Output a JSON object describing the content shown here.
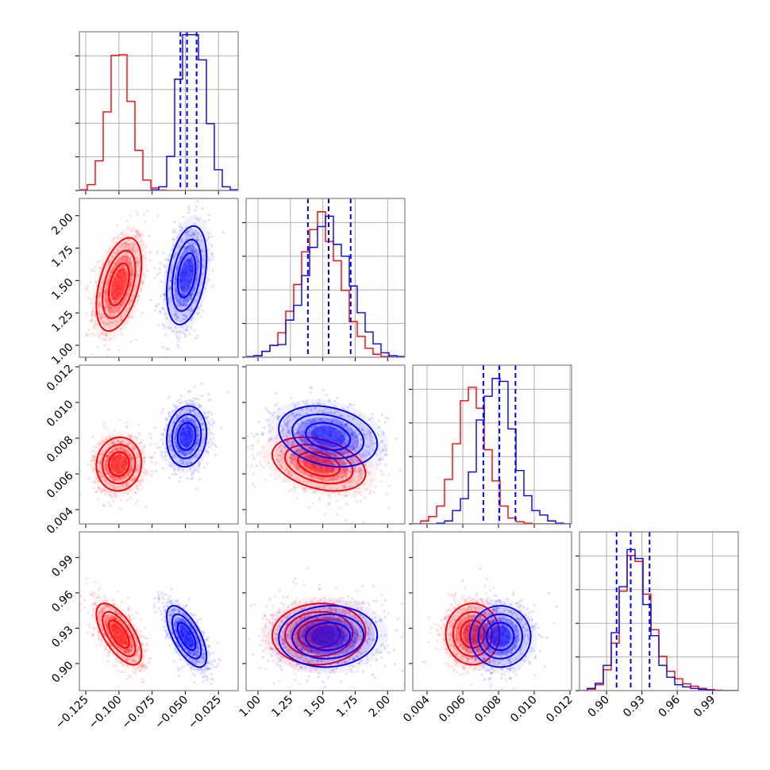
{
  "chart_data": {
    "type": "corner",
    "title": "",
    "parameters": [
      {
        "index": 0,
        "range": [
          -0.1298,
          -0.0102
        ],
        "ticks": [
          -0.125,
          -0.1,
          -0.075,
          -0.05,
          -0.025
        ],
        "tick_labels": [
          "−0.125",
          "−0.100",
          "−0.075",
          "−0.050",
          "−0.025"
        ]
      },
      {
        "index": 1,
        "range": [
          0.908,
          2.133
        ],
        "ticks": [
          1.0,
          1.25,
          1.5,
          1.75,
          2.0
        ],
        "tick_labels": [
          "1.00",
          "1.25",
          "1.50",
          "1.75",
          "2.00"
        ]
      },
      {
        "index": 2,
        "range": [
          0.0032,
          0.01209
        ],
        "ticks": [
          0.004,
          0.006,
          0.008,
          0.01,
          0.012
        ],
        "tick_labels": [
          "0.004",
          "0.006",
          "0.008",
          "0.010",
          "0.012"
        ]
      },
      {
        "index": 3,
        "range": [
          0.877,
          1.0118
        ],
        "ticks": [
          0.9,
          0.93,
          0.96,
          0.99
        ],
        "tick_labels": [
          "0.90",
          "0.93",
          "0.96",
          "0.99"
        ]
      }
    ],
    "series": [
      {
        "name": "red",
        "color": "#ff0000",
        "means": [
          -0.1,
          1.47,
          0.00655,
          0.925
        ],
        "stds": [
          0.0085,
          0.18,
          0.00075,
          0.013
        ],
        "correlations": {
          "0-1": 0.45,
          "0-2": 0.05,
          "0-3": -0.65,
          "1-2": -0.35,
          "1-3": 0.05,
          "2-3": 0.0
        },
        "histograms": [
          [
            0.005,
            0.04,
            0.2,
            0.53,
            0.91,
            0.915,
            0.6,
            0.27,
            0.07,
            0.017,
            0.003,
            0,
            0,
            0,
            0,
            0,
            0,
            0,
            0,
            0
          ],
          [
            0.005,
            0.01,
            0.04,
            0.08,
            0.165,
            0.31,
            0.49,
            0.71,
            0.86,
            0.98,
            0.78,
            0.65,
            0.45,
            0.24,
            0.14,
            0.06,
            0.02,
            0.005,
            0,
            0
          ],
          [
            0,
            0.02,
            0.05,
            0.12,
            0.3,
            0.54,
            0.83,
            0.92,
            0.78,
            0.5,
            0.29,
            0.12,
            0.04,
            0.015,
            0.005,
            0,
            0,
            0,
            0,
            0
          ],
          [
            0,
            0.01,
            0.04,
            0.14,
            0.32,
            0.67,
            0.91,
            0.87,
            0.65,
            0.41,
            0.23,
            0.13,
            0.08,
            0.045,
            0.03,
            0.015,
            0.007,
            0.003,
            0,
            0
          ]
        ]
      },
      {
        "name": "blue",
        "color": "#0000ff",
        "means": [
          -0.049,
          1.54,
          0.0081,
          0.923
        ],
        "stds": [
          0.0075,
          0.19,
          0.00085,
          0.013
        ],
        "correlations": {
          "0-1": 0.35,
          "0-2": 0.1,
          "0-3": -0.65,
          "1-2": -0.25,
          "1-3": 0.05,
          "2-3": 0.0
        },
        "histograms": [
          [
            0,
            0,
            0,
            0,
            0,
            0,
            0,
            0,
            0,
            0.005,
            0.025,
            0.23,
            0.75,
            1.05,
            1.05,
            0.88,
            0.45,
            0.14,
            0.025,
            0.005
          ],
          [
            0.003,
            0.01,
            0.04,
            0.08,
            0.085,
            0.25,
            0.35,
            0.55,
            0.74,
            0.88,
            0.95,
            0.76,
            0.68,
            0.48,
            0.3,
            0.17,
            0.09,
            0.03,
            0.01,
            0.005
          ],
          [
            0,
            0,
            0,
            0.005,
            0.02,
            0.09,
            0.17,
            0.35,
            0.7,
            0.86,
            0.98,
            0.96,
            0.64,
            0.36,
            0.19,
            0.09,
            0.06,
            0.02,
            0.005,
            0
          ],
          [
            0,
            0.015,
            0.05,
            0.17,
            0.39,
            0.7,
            0.95,
            0.89,
            0.58,
            0.37,
            0.17,
            0.09,
            0.04,
            0.025,
            0.015,
            0.008,
            0.003,
            0,
            0,
            0
          ]
        ]
      }
    ],
    "quantile_lines": {
      "color": "#0000ff",
      "style": "dashed",
      "values": [
        [
          -0.0537,
          -0.0487,
          -0.0415
        ],
        [
          1.385,
          1.545,
          1.715
        ],
        [
          0.00715,
          0.00805,
          0.00895
        ],
        [
          0.9085,
          0.9205,
          0.9365
        ]
      ]
    },
    "contour_levels": 3,
    "grid": true,
    "legend": "none"
  }
}
